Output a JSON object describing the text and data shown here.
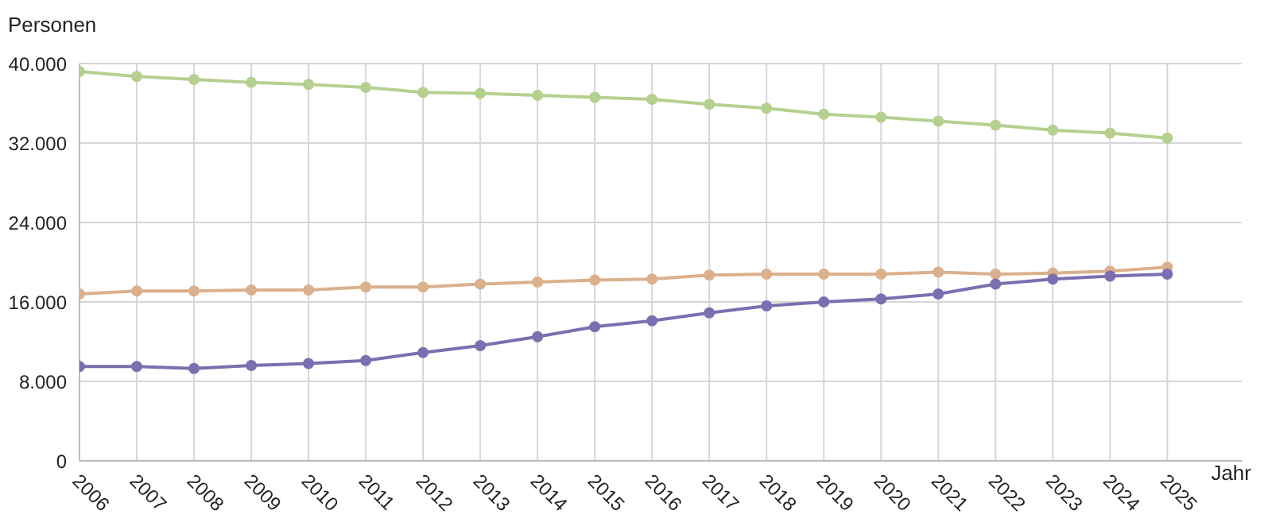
{
  "chart_data": {
    "type": "line",
    "xlabel": "Jahr",
    "ylabel": "Personen",
    "x": [
      2006,
      2007,
      2008,
      2009,
      2010,
      2011,
      2012,
      2013,
      2014,
      2015,
      2016,
      2017,
      2018,
      2019,
      2020,
      2021,
      2022,
      2023,
      2024,
      2025
    ],
    "xlim": [
      2006,
      2026.3
    ],
    "xticks": [
      2006,
      2007,
      2008,
      2009,
      2010,
      2011,
      2012,
      2013,
      2014,
      2015,
      2016,
      2017,
      2018,
      2019,
      2020,
      2021,
      2022,
      2023,
      2024,
      2025
    ],
    "ylim": [
      0,
      40000
    ],
    "yticks": [
      {
        "value": 0,
        "label": "0"
      },
      {
        "value": 8000,
        "label": "8.000"
      },
      {
        "value": 16000,
        "label": "16.000"
      },
      {
        "value": 24000,
        "label": "24.000"
      },
      {
        "value": 32000,
        "label": "32.000"
      },
      {
        "value": 40000,
        "label": "40.000"
      }
    ],
    "grid": true,
    "marker": "circle",
    "line_style": "solid",
    "series": [
      {
        "color": "#b5d08f",
        "values": [
          39200,
          38700,
          38400,
          38100,
          37900,
          37600,
          37100,
          37000,
          36800,
          36600,
          36400,
          35900,
          35500,
          34900,
          34600,
          34200,
          33800,
          33300,
          33000,
          32500
        ]
      },
      {
        "color": "#dbb08c",
        "values": [
          16800,
          17100,
          17100,
          17200,
          17200,
          17500,
          17500,
          17800,
          18000,
          18200,
          18300,
          18700,
          18800,
          18800,
          18800,
          19000,
          18800,
          18900,
          19100,
          19500
        ]
      },
      {
        "color": "#7b6fb0",
        "values": [
          9500,
          9500,
          9300,
          9600,
          9800,
          10100,
          10900,
          11600,
          12500,
          13500,
          14100,
          14900,
          15600,
          16000,
          16300,
          16800,
          17800,
          18300,
          18600,
          18800
        ]
      }
    ]
  }
}
